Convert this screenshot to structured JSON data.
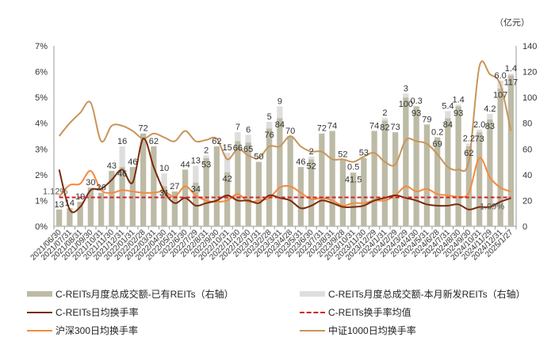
{
  "chart_data": {
    "type": "bar+line",
    "title": "",
    "right_axis_unit": "（亿元）",
    "left_axis": {
      "ticks": [
        "0%",
        "1%",
        "2%",
        "3%",
        "4%",
        "5%",
        "6%",
        "7%"
      ],
      "min": 0,
      "max": 7
    },
    "right_axis": {
      "ticks": [
        "0",
        "20",
        "40",
        "60",
        "80",
        "100",
        "120",
        "140"
      ],
      "min": 0,
      "max": 140
    },
    "categories": [
      "2021/06/30",
      "2021/07/31",
      "2021/08/31",
      "2021/09/30",
      "2021/10/31",
      "2021/11/30",
      "2021/12/31",
      "2022/01/31",
      "2022/02/28",
      "2022/03/31",
      "2022/04/30",
      "2022/05/31",
      "2022/6/30",
      "2022/7/29",
      "2022/8/31",
      "2022/9/30",
      "2022/10/31",
      "2022/11/30",
      "2022/12/30",
      "2023/1/31",
      "2023/2/28",
      "2023/3/31",
      "2023/4/28",
      "2023/5/31",
      "2023/6/30",
      "2023/7/31",
      "2023/8/31",
      "2023/9/28",
      "2023/10/31",
      "2023/11/30",
      "2023/12/29",
      "2024/1/31",
      "2024/2/29",
      "2024/3/29",
      "2024/4/30",
      "2024/5/31",
      "2024/6/28",
      "2024/7/31",
      "2024/8/30",
      "2024/9/30",
      "2024/10/31",
      "2024/11/29",
      "2024/12/31",
      "2025/1/27"
    ],
    "series": [
      {
        "name": "C-REITs月度总成交额-已有REITs（右轴）",
        "type": "bar",
        "axis": "right",
        "color": "#bdbba6",
        "values": [
          13,
          14,
          19,
          30,
          26,
          43,
          46,
          46,
          72,
          62,
          31,
          27,
          44,
          34,
          53,
          62,
          42,
          66,
          65,
          50,
          76,
          84,
          70,
          46,
          52,
          72,
          74,
          52,
          41.5,
          53,
          74,
          82,
          73,
          100,
          93,
          79,
          69,
          84,
          93,
          62,
          73,
          83,
          107,
          117
        ]
      },
      {
        "name": "C-REITs月度总成交额-本月新发REITs（右轴）",
        "type": "bar",
        "axis": "right",
        "color": "#dedede",
        "values": [
          0,
          0,
          0,
          0,
          0,
          0,
          16,
          0,
          0,
          0,
          10,
          0,
          0,
          13,
          2,
          0,
          15,
          7,
          6,
          0,
          5,
          9,
          0,
          0,
          2,
          0,
          0,
          0,
          0.5,
          0,
          0,
          2,
          0,
          3,
          0.3,
          0,
          0.2,
          5.4,
          1.4,
          2.2,
          2.0,
          4.2,
          6.0,
          1.4
        ]
      },
      {
        "name": "C-REITs日均换手率",
        "type": "line",
        "axis": "left",
        "color": "#7b2a0a",
        "values": [
          2.2,
          0.65,
          0.75,
          1.4,
          1.45,
          1.8,
          2.2,
          1.7,
          3.4,
          2.3,
          1.35,
          0.9,
          1.1,
          0.8,
          0.9,
          1.0,
          1.2,
          1.0,
          1.0,
          0.9,
          1.2,
          1.1,
          1.0,
          0.7,
          0.8,
          1.0,
          0.9,
          0.75,
          0.75,
          0.8,
          1.0,
          1.1,
          1.2,
          1.1,
          1.0,
          0.85,
          0.8,
          0.8,
          0.85,
          0.65,
          0.75,
          0.75,
          0.95,
          1.09
        ]
      },
      {
        "name": "C-REITs换手率均值",
        "type": "line",
        "axis": "left",
        "color": "#d0202a",
        "dashed": true,
        "values": [
          1.12,
          1.12,
          1.12,
          1.12,
          1.12,
          1.12,
          1.12,
          1.12,
          1.12,
          1.12,
          1.12,
          1.12,
          1.12,
          1.12,
          1.12,
          1.12,
          1.12,
          1.12,
          1.12,
          1.12,
          1.12,
          1.12,
          1.12,
          1.12,
          1.12,
          1.12,
          1.12,
          1.12,
          1.12,
          1.12,
          1.12,
          1.12,
          1.12,
          1.12,
          1.12,
          1.12,
          1.12,
          1.12,
          1.12,
          1.12,
          1.12,
          1.12,
          1.12,
          1.12
        ]
      },
      {
        "name": "沪深300日均换手率",
        "type": "line",
        "axis": "left",
        "color": "#f58a3c",
        "values": [
          1.15,
          1.6,
          1.65,
          2.15,
          1.4,
          1.3,
          1.4,
          1.35,
          1.3,
          1.3,
          1.35,
          1.15,
          1.55,
          1.2,
          1.0,
          0.95,
          1.0,
          1.25,
          0.95,
          1.0,
          1.1,
          1.5,
          1.55,
          1.3,
          1.05,
          1.1,
          1.0,
          0.8,
          0.9,
          0.9,
          1.0,
          1.0,
          1.2,
          1.55,
          1.35,
          1.45,
          1.25,
          1.2,
          1.15,
          1.3,
          2.65,
          1.9,
          1.5,
          1.35
        ]
      },
      {
        "name": "中证1000日均换手率",
        "type": "line",
        "axis": "left",
        "color": "#c8955a",
        "values": [
          3.5,
          4.0,
          4.4,
          4.8,
          3.3,
          3.9,
          3.9,
          3.7,
          3.4,
          3.6,
          3.45,
          3.3,
          3.7,
          3.3,
          3.35,
          3.4,
          2.6,
          3.0,
          2.75,
          2.65,
          3.1,
          3.1,
          3.5,
          3.1,
          2.9,
          2.9,
          2.6,
          2.6,
          2.5,
          2.7,
          2.85,
          2.5,
          2.4,
          3.35,
          3.3,
          3.2,
          2.8,
          2.3,
          2.2,
          2.55,
          6.2,
          5.9,
          5.5,
          3.7
        ]
      }
    ],
    "bar_labels_existing": [
      "13",
      "14",
      "19",
      "30",
      "26",
      "43",
      "46",
      "46",
      "72",
      "62",
      "31",
      "27",
      "44",
      "34",
      "53",
      "62",
      "42",
      "66",
      "65",
      "50",
      "76",
      "84",
      "70",
      "46",
      "52",
      "72",
      "74",
      "52",
      "41.5",
      "53",
      "74",
      "82",
      "73",
      "100",
      "93",
      "79",
      "69",
      "84",
      "93",
      "62",
      "73",
      "83",
      "107",
      "117"
    ],
    "bar_labels_new": [
      "",
      "",
      "",
      "",
      "",
      "",
      "16",
      "",
      "",
      "",
      "10",
      "",
      "",
      "13",
      "2",
      "",
      "15",
      "7",
      "6",
      "",
      "5",
      "9",
      "",
      "",
      "2",
      "",
      "",
      "",
      "0.5",
      "",
      "",
      "2",
      "",
      "3",
      "0.3",
      "",
      "0.2",
      "5.4",
      "1.4",
      "2.2",
      "2.0",
      "4.2",
      "6.0",
      "1.4"
    ],
    "annotations": [
      {
        "text": "1.12%",
        "position": "left-start"
      },
      {
        "text": "1.09%",
        "position": "right-end"
      }
    ],
    "legend_position": "bottom",
    "grid": false
  },
  "legend": {
    "items": [
      {
        "label": "C-REITs月度总成交额-已有REITs（右轴）"
      },
      {
        "label": "C-REITs月度总成交额-本月新发REITs（右轴）"
      },
      {
        "label": "C-REITs日均换手率"
      },
      {
        "label": "C-REITs换手率均值"
      },
      {
        "label": "沪深300日均换手率"
      },
      {
        "label": "中证1000日均换手率"
      }
    ]
  }
}
